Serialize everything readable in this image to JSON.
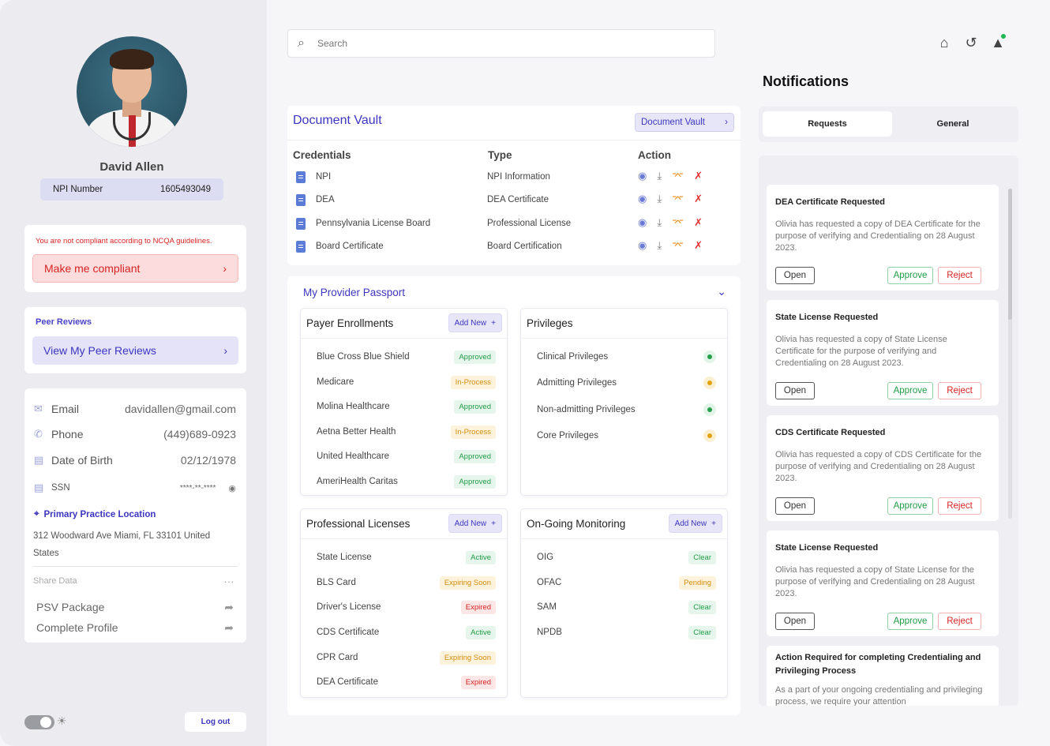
{
  "profile": {
    "name": "David Allen",
    "npi_label": "NPI Number",
    "npi_value": "1605493049"
  },
  "compliance": {
    "message": "You are not compliant according to NCQA guidelines.",
    "button": "Make me compliant"
  },
  "peer": {
    "label": "Peer Reviews",
    "button": "View My Peer Reviews"
  },
  "contact": {
    "email_label": "Email",
    "email_value": "davidallen@gmail.com",
    "phone_label": "Phone",
    "phone_value": "(449)689-0923",
    "dob_label": "Date of Birth",
    "dob_value": "02/12/1978",
    "ssn_label": "SSN",
    "ssn_value": "****-**-****",
    "location_label": "Primary Practice Location",
    "address": "312 Woodward Ave Miami, FL 33101 United States",
    "share_label": "Share Data",
    "psv": "PSV Package",
    "complete": "Complete Profile"
  },
  "footer": {
    "logout": "Log out"
  },
  "search": {
    "placeholder": "Search"
  },
  "vault": {
    "title": "Document Vault",
    "button": "Document Vault",
    "headers": {
      "credentials": "Credentials",
      "type": "Type",
      "action": "Action"
    },
    "rows": [
      {
        "credential": "NPI",
        "type": "NPI Information"
      },
      {
        "credential": "DEA",
        "type": "DEA Certificate"
      },
      {
        "credential": "Pennsylvania License Board",
        "type": "Professional License"
      },
      {
        "credential": "Board Certificate",
        "type": "Board Certification"
      }
    ]
  },
  "passport": {
    "title": "My Provider Passport",
    "add_new": "Add New",
    "payer": {
      "title": "Payer Enrollments",
      "items": [
        {
          "name": "Blue Cross Blue Shield",
          "status": "Approved"
        },
        {
          "name": "Medicare",
          "status": "In-Process"
        },
        {
          "name": "Molina Healthcare",
          "status": "Approved"
        },
        {
          "name": "Aetna Better Health",
          "status": "In-Process"
        },
        {
          "name": "United Healthcare",
          "status": "Approved"
        },
        {
          "name": "AmeriHealth Caritas",
          "status": "Approved"
        }
      ]
    },
    "privileges": {
      "title": "Privileges",
      "items": [
        {
          "name": "Clinical Privileges",
          "color": "#27a04b"
        },
        {
          "name": "Admitting Privileges",
          "color": "#e3a10c"
        },
        {
          "name": "Non-admitting Privileges",
          "color": "#27a04b"
        },
        {
          "name": "Core Privileges",
          "color": "#e3a10c"
        }
      ]
    },
    "licenses": {
      "title": "Professional Licenses",
      "items": [
        {
          "name": "State License",
          "status": "Active"
        },
        {
          "name": "BLS Card",
          "status": "Expiring Soon"
        },
        {
          "name": "Driver's License",
          "status": "Expired"
        },
        {
          "name": "CDS Certificate",
          "status": "Active"
        },
        {
          "name": "CPR Card",
          "status": "Expiring Soon"
        },
        {
          "name": "DEA Certificate",
          "status": "Expired"
        }
      ]
    },
    "monitoring": {
      "title": "On-Going Monitoring",
      "items": [
        {
          "name": "OIG",
          "status": "Clear"
        },
        {
          "name": "OFAC",
          "status": "Pending"
        },
        {
          "name": "SAM",
          "status": "Clear"
        },
        {
          "name": "NPDB",
          "status": "Clear"
        }
      ]
    }
  },
  "notifications": {
    "title": "Notifications",
    "tabs": [
      "Requests",
      "General"
    ],
    "open": "Open",
    "approve": "Approve",
    "reject": "Reject",
    "items": [
      {
        "title": "DEA Certificate Requested",
        "body": "Olivia has requested a copy of DEA Certificate for the purpose of verifying and Credentialing on 28 August 2023."
      },
      {
        "title": "State License Requested",
        "body": "Olivia has requested a copy of State License Certificate for the purpose of verifying and Credentialing on 28 August 2023."
      },
      {
        "title": "CDS Certificate Requested",
        "body": "Olivia has requested a copy of CDS Certificate for the purpose of verifying and Credentialing on 28 August 2023."
      },
      {
        "title": "State License Requested",
        "body": "Olivia has requested a copy of State License for the purpose of verifying and Credentialing on 28 August 2023."
      },
      {
        "title": "Action Required for completing Credentialing and Privileging Process",
        "body": "As a part of your ongoing credentialing and privileging process, we require your attention"
      }
    ]
  }
}
